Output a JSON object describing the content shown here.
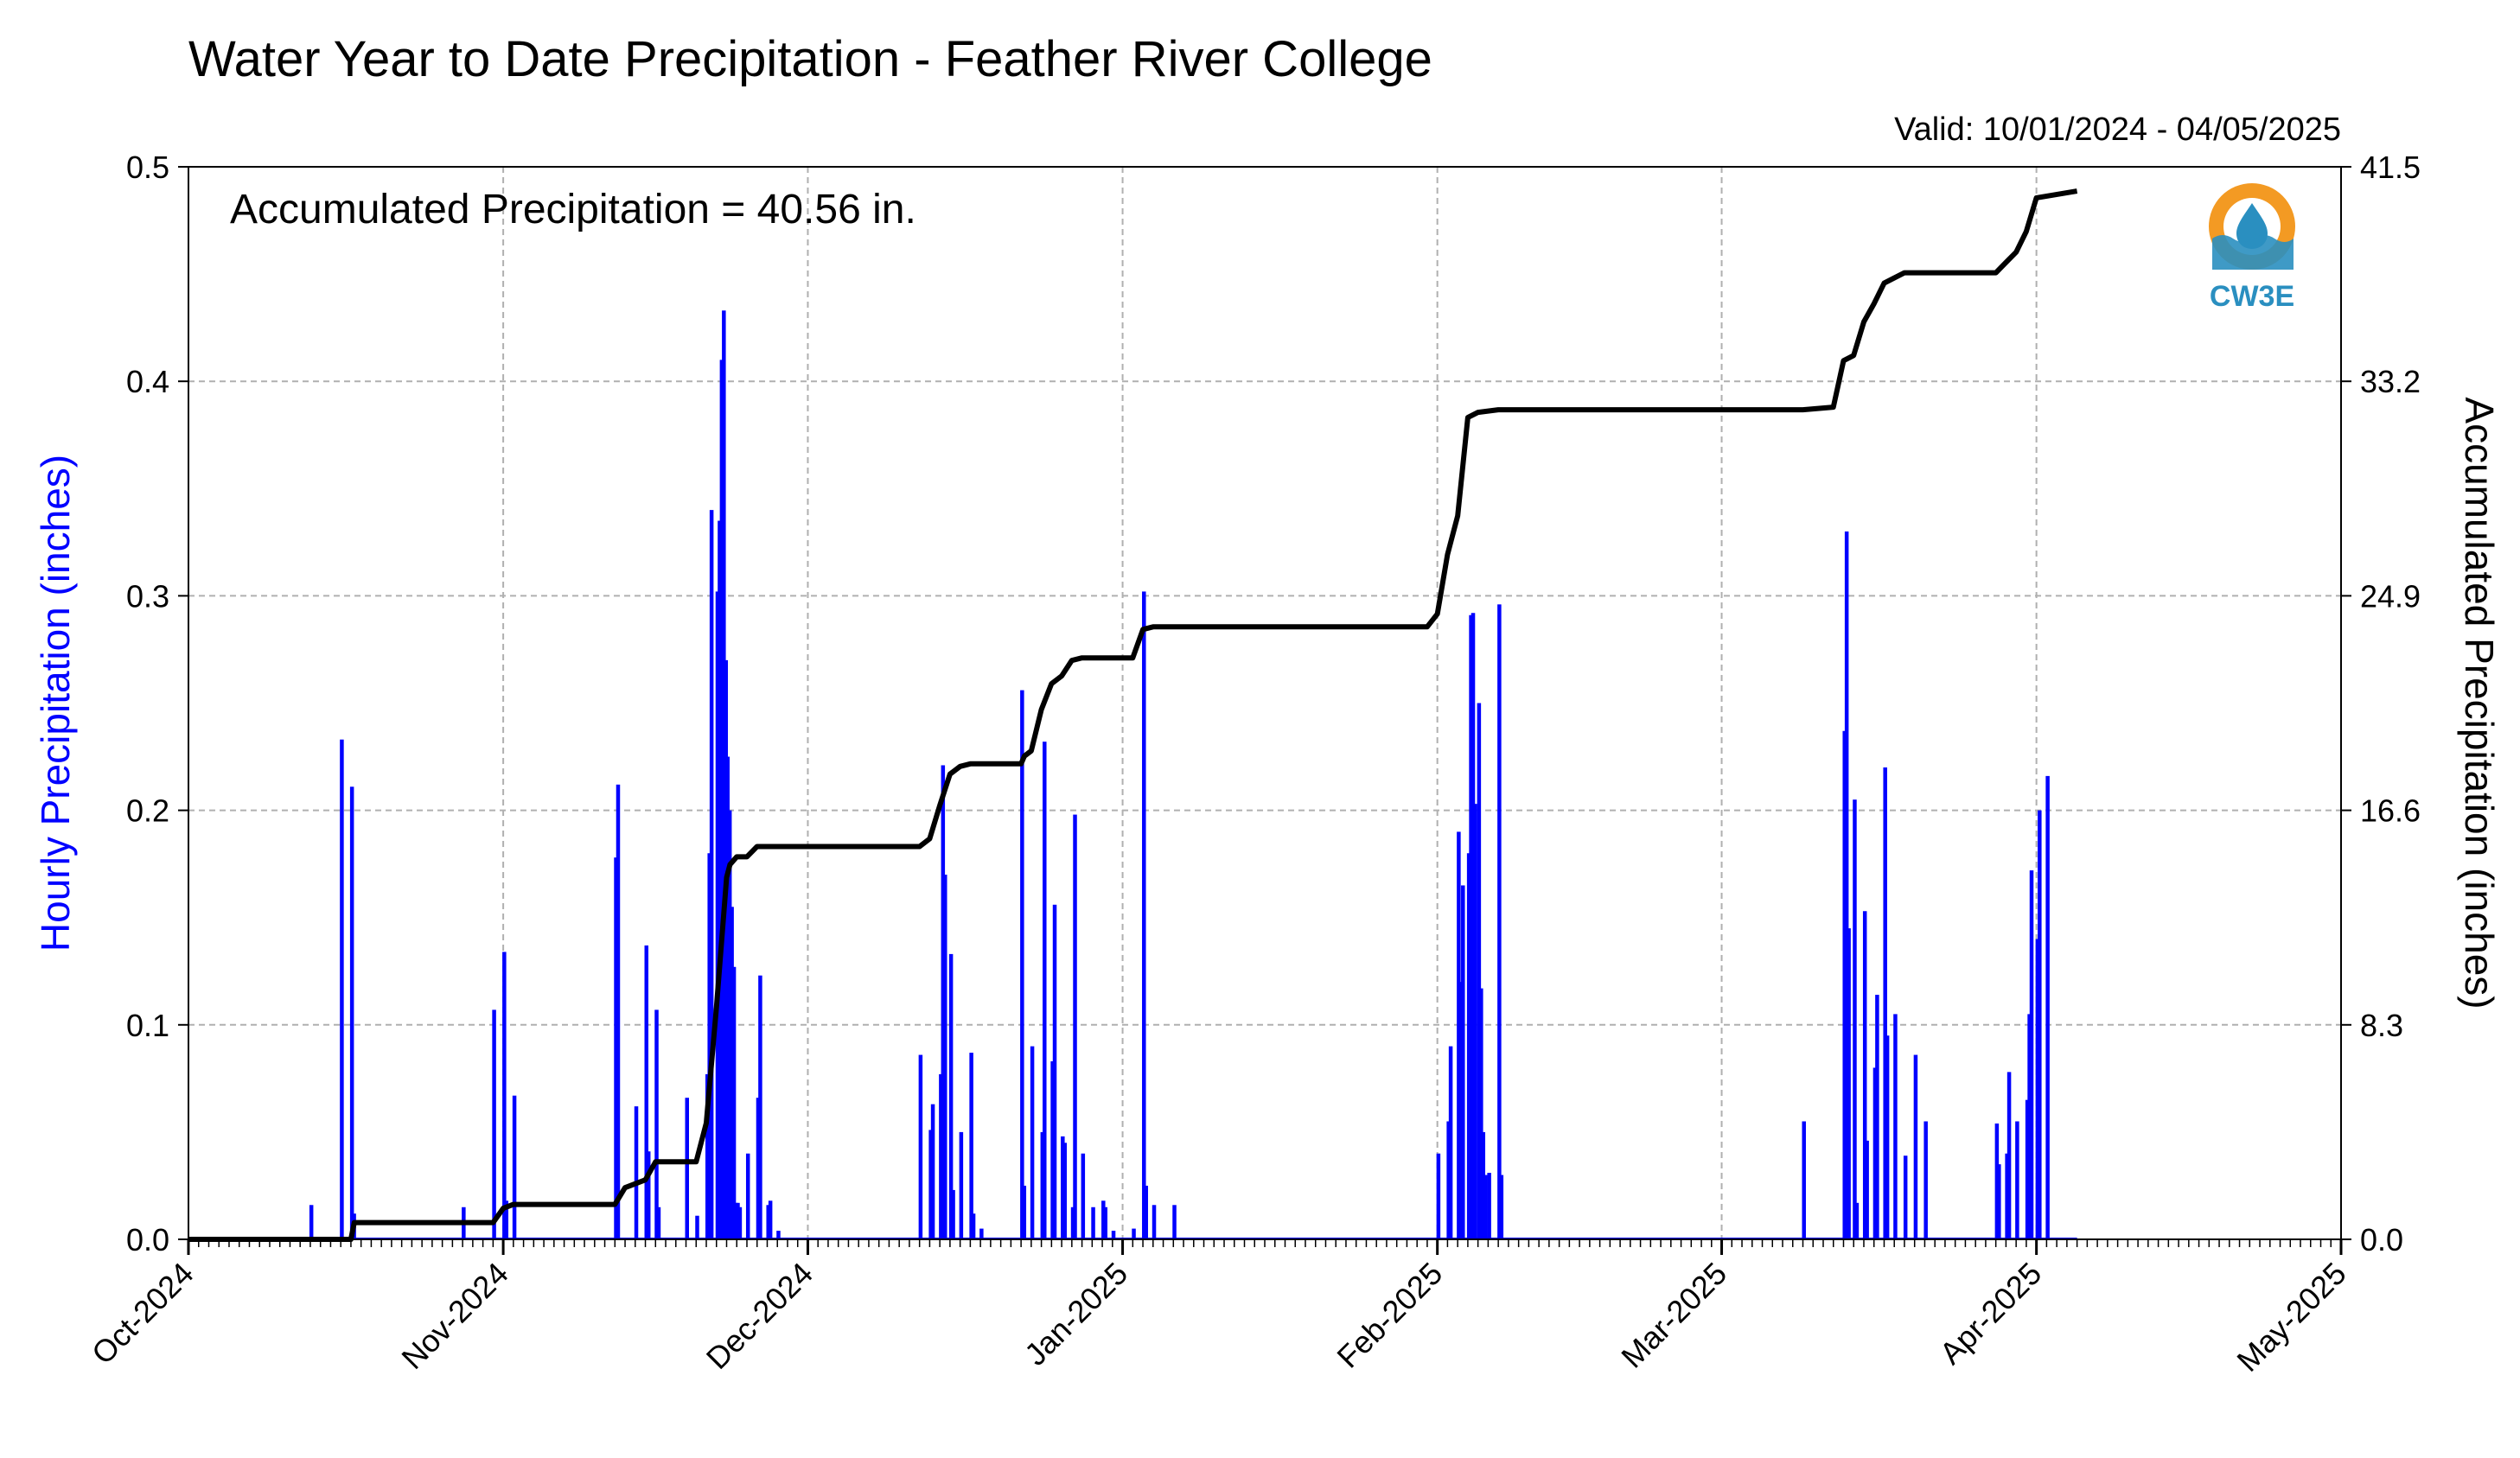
{
  "title": "Water Year to Date Precipitation - Feather River College",
  "valid_text": "Valid: 10/01/2024 - 04/05/2025",
  "annotation": "Accumulated Precipitation = 40.56 in.",
  "logo": {
    "text": "CW3E",
    "icon": "cw3e-water-drop-logo"
  },
  "colors": {
    "hourly": "#0000ff",
    "accumulated": "#000000",
    "grid": "#b0b0b0",
    "logo_orange": "#f39a23",
    "logo_blue": "#2a8fc0"
  },
  "chart_data": {
    "type": "bar",
    "title": "Water Year to Date Precipitation - Feather River College",
    "xlabel": "",
    "ylabel": "Hourly Precipitation (inches)",
    "y2label": "Accumulated Precipitation (inches)",
    "x_start": "2024-10-01",
    "x_end": "2025-05-01",
    "x_tick_labels": [
      "Oct-2024",
      "Nov-2024",
      "Dec-2024",
      "Jan-2025",
      "Feb-2025",
      "Mar-2025",
      "Apr-2025",
      "May-2025"
    ],
    "x_tick_dates": [
      "2024-10-01",
      "2024-11-01",
      "2024-12-01",
      "2025-01-01",
      "2025-02-01",
      "2025-03-01",
      "2025-04-01",
      "2025-05-01"
    ],
    "ylim": [
      0,
      0.5
    ],
    "y_ticks": [
      "0.0",
      "0.1",
      "0.2",
      "0.3",
      "0.4",
      "0.5"
    ],
    "y2lim": [
      0,
      41.5
    ],
    "y2_ticks": [
      "0.0",
      "8.3",
      "16.6",
      "24.9",
      "33.2",
      "41.5"
    ],
    "grid": true,
    "series": [
      {
        "name": "Hourly Precipitation (inches)",
        "type": "bar",
        "dates": [
          "2024-10-13",
          "2024-10-16",
          "2024-10-17",
          "2024-10-17",
          "2024-10-28",
          "2024-10-31",
          "2024-11-01",
          "2024-11-01",
          "2024-11-02",
          "2024-11-12",
          "2024-11-12",
          "2024-11-14",
          "2024-11-15",
          "2024-11-15",
          "2024-11-16",
          "2024-11-16",
          "2024-11-19",
          "2024-11-20",
          "2024-11-21",
          "2024-11-21",
          "2024-11-21",
          "2024-11-22",
          "2024-11-22",
          "2024-11-22",
          "2024-11-22",
          "2024-11-22",
          "2024-11-23",
          "2024-11-23",
          "2024-11-23",
          "2024-11-23",
          "2024-11-23",
          "2024-11-24",
          "2024-11-24",
          "2024-11-25",
          "2024-11-26",
          "2024-11-26",
          "2024-11-27",
          "2024-11-27",
          "2024-11-28",
          "2024-12-12",
          "2024-12-13",
          "2024-12-13",
          "2024-12-14",
          "2024-12-14",
          "2024-12-14",
          "2024-12-15",
          "2024-12-15",
          "2024-12-16",
          "2024-12-17",
          "2024-12-17",
          "2024-12-18",
          "2024-12-22",
          "2024-12-22",
          "2024-12-23",
          "2024-12-24",
          "2024-12-24",
          "2024-12-25",
          "2024-12-25",
          "2024-12-26",
          "2024-12-26",
          "2024-12-27",
          "2024-12-27",
          "2024-12-28",
          "2024-12-29",
          "2024-12-30",
          "2024-12-30",
          "2024-12-31",
          "2025-01-02",
          "2025-01-03",
          "2025-01-03",
          "2025-01-04",
          "2025-01-06",
          "2025-02-01",
          "2025-02-02",
          "2025-02-02",
          "2025-02-03",
          "2025-02-03",
          "2025-02-03",
          "2025-02-04",
          "2025-02-04",
          "2025-02-04",
          "2025-02-04",
          "2025-02-05",
          "2025-02-05",
          "2025-02-05",
          "2025-02-05",
          "2025-02-06",
          "2025-02-07",
          "2025-02-07",
          "2025-03-09",
          "2025-03-13",
          "2025-03-13",
          "2025-03-13",
          "2025-03-14",
          "2025-03-14",
          "2025-03-15",
          "2025-03-15",
          "2025-03-16",
          "2025-03-16",
          "2025-03-17",
          "2025-03-17",
          "2025-03-18",
          "2025-03-19",
          "2025-03-20",
          "2025-03-21",
          "2025-03-28",
          "2025-03-28",
          "2025-03-29",
          "2025-03-29",
          "2025-03-30",
          "2025-03-31",
          "2025-03-31",
          "2025-03-31",
          "2025-04-01",
          "2025-04-01",
          "2025-04-02"
        ],
        "values": [
          0.016,
          0.233,
          0.211,
          0.012,
          0.015,
          0.107,
          0.134,
          0.018,
          0.067,
          0.178,
          0.212,
          0.062,
          0.137,
          0.041,
          0.107,
          0.015,
          0.066,
          0.011,
          0.077,
          0.18,
          0.34,
          0.302,
          0.335,
          0.41,
          0.433,
          0.27,
          0.225,
          0.2,
          0.155,
          0.127,
          0.017,
          0.017,
          0.015,
          0.04,
          0.066,
          0.123,
          0.016,
          0.018,
          0.004,
          0.086,
          0.051,
          0.063,
          0.077,
          0.221,
          0.17,
          0.133,
          0.023,
          0.05,
          0.087,
          0.012,
          0.005,
          0.256,
          0.025,
          0.09,
          0.05,
          0.232,
          0.083,
          0.156,
          0.048,
          0.045,
          0.015,
          0.198,
          0.04,
          0.015,
          0.018,
          0.015,
          0.004,
          0.005,
          0.302,
          0.025,
          0.016,
          0.016,
          0.04,
          0.055,
          0.09,
          0.19,
          0.12,
          0.165,
          0.18,
          0.291,
          0.292,
          0.203,
          0.25,
          0.117,
          0.05,
          0.03,
          0.031,
          0.296,
          0.03,
          0.055,
          0.237,
          0.33,
          0.145,
          0.205,
          0.017,
          0.153,
          0.046,
          0.08,
          0.114,
          0.22,
          0.095,
          0.105,
          0.039,
          0.086,
          0.055,
          0.054,
          0.035,
          0.04,
          0.078,
          0.055,
          0.065,
          0.105,
          0.172,
          0.14,
          0.2,
          0.216
        ]
      },
      {
        "name": "Accumulated Precipitation (inches)",
        "type": "line",
        "dates": [
          "2024-10-01",
          "2024-10-17",
          "2024-10-17",
          "2024-10-31",
          "2024-11-01",
          "2024-11-02",
          "2024-11-12",
          "2024-11-13",
          "2024-11-15",
          "2024-11-16",
          "2024-11-20",
          "2024-11-21",
          "2024-11-22",
          "2024-11-23",
          "2024-11-23",
          "2024-11-24",
          "2024-11-25",
          "2024-11-26",
          "2024-11-27",
          "2024-12-12",
          "2024-12-13",
          "2024-12-14",
          "2024-12-15",
          "2024-12-16",
          "2024-12-17",
          "2024-12-22",
          "2024-12-22",
          "2024-12-23",
          "2024-12-24",
          "2024-12-25",
          "2024-12-26",
          "2024-12-27",
          "2024-12-28",
          "2025-01-02",
          "2025-01-03",
          "2025-01-04",
          "2025-01-31",
          "2025-02-01",
          "2025-02-02",
          "2025-02-03",
          "2025-02-04",
          "2025-02-05",
          "2025-02-07",
          "2025-02-08",
          "2025-03-09",
          "2025-03-12",
          "2025-03-13",
          "2025-03-14",
          "2025-03-15",
          "2025-03-16",
          "2025-03-17",
          "2025-03-18",
          "2025-03-19",
          "2025-03-20",
          "2025-03-28",
          "2025-03-29",
          "2025-03-30",
          "2025-03-31",
          "2025-04-01",
          "2025-04-05"
        ],
        "values": [
          0.0,
          0.0,
          0.65,
          0.65,
          1.2,
          1.35,
          1.35,
          2.0,
          2.3,
          3.0,
          3.0,
          4.5,
          9.0,
          14.0,
          14.5,
          14.8,
          14.8,
          15.2,
          15.2,
          15.2,
          15.5,
          16.8,
          18.0,
          18.3,
          18.4,
          18.4,
          18.7,
          18.9,
          20.5,
          21.5,
          21.8,
          22.4,
          22.5,
          22.5,
          23.6,
          23.7,
          23.7,
          24.2,
          26.5,
          28.0,
          31.8,
          32.0,
          32.1,
          32.1,
          32.1,
          32.2,
          34.0,
          34.2,
          35.5,
          36.2,
          37.0,
          37.2,
          37.4,
          37.4,
          37.4,
          37.8,
          38.2,
          39.0,
          40.3,
          40.56
        ]
      }
    ]
  }
}
